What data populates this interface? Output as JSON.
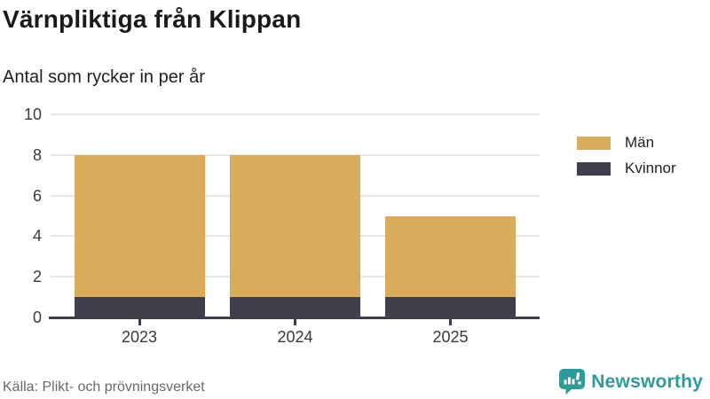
{
  "header": {
    "title": "Värnpliktiga från Klippan",
    "subtitle": "Antal som rycker in per år"
  },
  "legend": {
    "items": [
      {
        "label": "Män",
        "color": "#D9AC5C"
      },
      {
        "label": "Kvinnor",
        "color": "#413F4C"
      }
    ]
  },
  "footer": {
    "source": "Källa: Plikt- och prövningsverket",
    "brand": "Newsworthy"
  },
  "colors": {
    "men": "#D9AC5C",
    "women": "#413F4C",
    "grid": "#E7E7E7",
    "axis": "#3E3D4B",
    "title": "#1A1A1A",
    "text": "#1F1F1F",
    "tick": "#3A3A3A",
    "source": "#696969",
    "brand": "#2E9B99",
    "background": "#FFFFFF"
  },
  "chart_data": {
    "type": "bar",
    "stacked": true,
    "title": "Värnpliktiga från Klippan",
    "subtitle": "Antal som rycker in per år",
    "categories": [
      "2023",
      "2024",
      "2025"
    ],
    "series": [
      {
        "name": "Kvinnor",
        "color": "#413F4C",
        "values": [
          1,
          1,
          1
        ]
      },
      {
        "name": "Män",
        "color": "#D9AC5C",
        "values": [
          7,
          7,
          4
        ]
      }
    ],
    "stack_totals": [
      8,
      8,
      5
    ],
    "xlabel": "",
    "ylabel": "",
    "ylim": [
      0,
      10
    ],
    "yticks": [
      0,
      2,
      4,
      6,
      8,
      10
    ],
    "grid": true,
    "legend_position": "right",
    "source": "Källa: Plikt- och prövningsverket"
  }
}
